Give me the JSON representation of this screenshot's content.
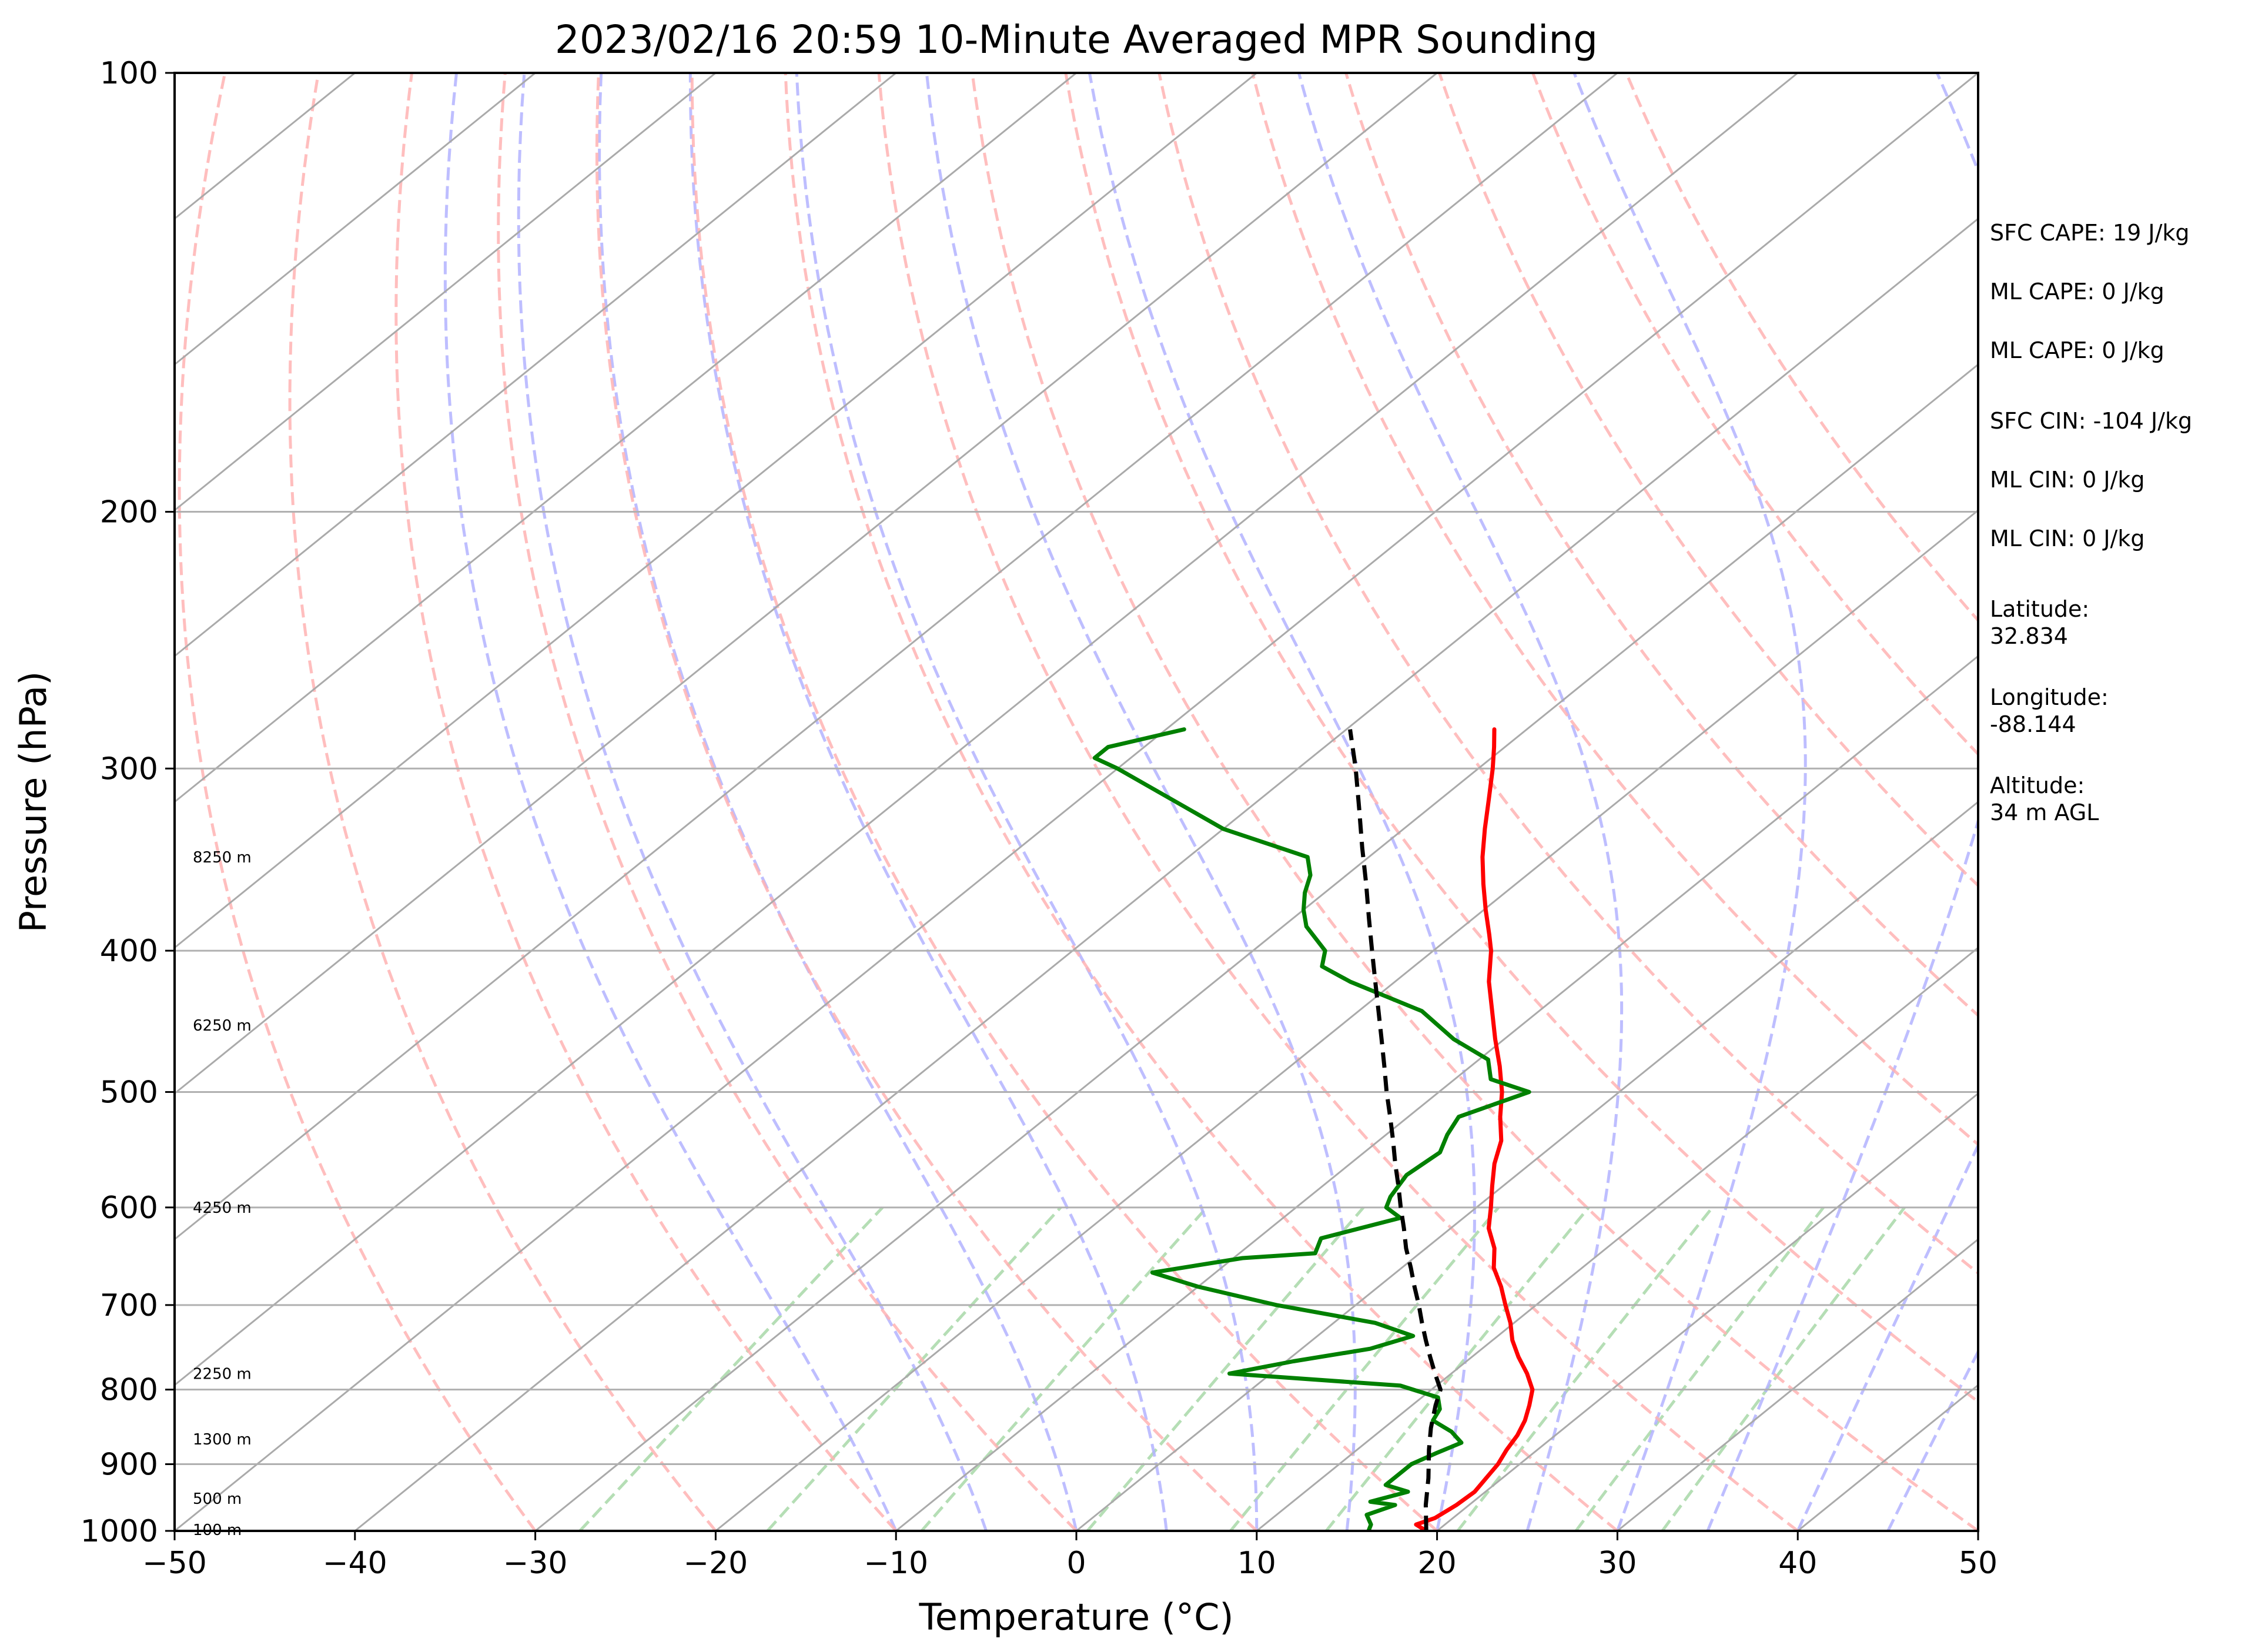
{
  "chart_data": {
    "type": "line",
    "title": "2023/02/16 20:59 10-Minute Averaged MPR Sounding",
    "xlabel": "Temperature (°C)",
    "ylabel": "Pressure (hPa)",
    "xlim": [
      -50,
      50
    ],
    "ylim": [
      1000,
      100
    ],
    "y_scale": "log",
    "skew_t": true,
    "grid": true,
    "x_ticks": [
      "−50",
      "−40",
      "−30",
      "−20",
      "−10",
      "0",
      "10",
      "20",
      "30",
      "40",
      "50"
    ],
    "y_ticks": [
      "100",
      "200",
      "300",
      "400",
      "500",
      "600",
      "700",
      "800",
      "900",
      "1000"
    ],
    "height_labels": [
      {
        "p": 998,
        "text": "100 m"
      },
      {
        "p": 950,
        "text": "500 m"
      },
      {
        "p": 865,
        "text": "1300 m"
      },
      {
        "p": 780,
        "text": "2250 m"
      },
      {
        "p": 600,
        "text": "4250 m"
      },
      {
        "p": 450,
        "text": "6250 m"
      },
      {
        "p": 345,
        "text": "8250 m"
      }
    ],
    "series": [
      {
        "key": "temperature",
        "color": "#ff0000",
        "style": "solid",
        "points": [
          [
            1000,
            19.4
          ],
          [
            990,
            18.4
          ],
          [
            980,
            19.0
          ],
          [
            960,
            19.3
          ],
          [
            940,
            19.4
          ],
          [
            920,
            19.1
          ],
          [
            900,
            18.8
          ],
          [
            880,
            18.3
          ],
          [
            860,
            17.9
          ],
          [
            840,
            17.3
          ],
          [
            820,
            16.5
          ],
          [
            800,
            15.6
          ],
          [
            780,
            14.2
          ],
          [
            760,
            12.6
          ],
          [
            740,
            11.1
          ],
          [
            720,
            9.8
          ],
          [
            700,
            8.3
          ],
          [
            680,
            6.8
          ],
          [
            660,
            5.1
          ],
          [
            640,
            3.8
          ],
          [
            620,
            2.1
          ],
          [
            600,
            0.8
          ],
          [
            580,
            -0.6
          ],
          [
            560,
            -2.0
          ],
          [
            540,
            -3.2
          ],
          [
            520,
            -4.9
          ],
          [
            500,
            -6.5
          ],
          [
            480,
            -8.4
          ],
          [
            460,
            -10.5
          ],
          [
            440,
            -12.6
          ],
          [
            420,
            -14.8
          ],
          [
            400,
            -16.8
          ],
          [
            390,
            -18.0
          ],
          [
            375,
            -19.9
          ],
          [
            360,
            -21.8
          ],
          [
            345,
            -23.7
          ],
          [
            330,
            -25.5
          ],
          [
            315,
            -27.3
          ],
          [
            300,
            -29.2
          ],
          [
            290,
            -30.6
          ],
          [
            282,
            -31.8
          ]
        ]
      },
      {
        "key": "dewpoint",
        "color": "#008000",
        "style": "solid",
        "points": [
          [
            1000,
            16.2
          ],
          [
            990,
            15.9
          ],
          [
            975,
            15.0
          ],
          [
            960,
            15.9
          ],
          [
            955,
            14.3
          ],
          [
            940,
            15.7
          ],
          [
            930,
            14.0
          ],
          [
            915,
            14.0
          ],
          [
            900,
            14.0
          ],
          [
            885,
            14.6
          ],
          [
            870,
            15.3
          ],
          [
            855,
            14.0
          ],
          [
            840,
            12.2
          ],
          [
            825,
            11.8
          ],
          [
            810,
            10.9
          ],
          [
            795,
            8.0
          ],
          [
            780,
            -2.3
          ],
          [
            765,
            0.4
          ],
          [
            750,
            3.8
          ],
          [
            735,
            5.3
          ],
          [
            720,
            2.3
          ],
          [
            700,
            -4.4
          ],
          [
            680,
            -10.0
          ],
          [
            665,
            -13.5
          ],
          [
            650,
            -9.5
          ],
          [
            645,
            -5.8
          ],
          [
            630,
            -6.5
          ],
          [
            610,
            -3.5
          ],
          [
            600,
            -5.0
          ],
          [
            590,
            -5.5
          ],
          [
            570,
            -6.1
          ],
          [
            550,
            -5.8
          ],
          [
            535,
            -6.6
          ],
          [
            520,
            -7.2
          ],
          [
            500,
            -5.0
          ],
          [
            490,
            -8.0
          ],
          [
            475,
            -9.5
          ],
          [
            460,
            -12.8
          ],
          [
            440,
            -16.5
          ],
          [
            420,
            -22.5
          ],
          [
            410,
            -25.1
          ],
          [
            400,
            -26.0
          ],
          [
            385,
            -28.7
          ],
          [
            375,
            -30.0
          ],
          [
            365,
            -31.1
          ],
          [
            355,
            -32.0
          ],
          [
            345,
            -33.4
          ],
          [
            330,
            -40.0
          ],
          [
            300,
            -50.0
          ],
          [
            295,
            -52.0
          ],
          [
            290,
            -52.0
          ],
          [
            282,
            -49.0
          ]
        ]
      },
      {
        "key": "parcel",
        "color": "#000000",
        "style": "dashed",
        "points": [
          [
            1000,
            19.4
          ],
          [
            960,
            17.6
          ],
          [
            920,
            15.9
          ],
          [
            880,
            14.0
          ],
          [
            850,
            12.6
          ],
          [
            820,
            11.3
          ],
          [
            800,
            10.5
          ],
          [
            780,
            9.1
          ],
          [
            760,
            7.7
          ],
          [
            740,
            6.3
          ],
          [
            720,
            4.9
          ],
          [
            700,
            3.5
          ],
          [
            680,
            2.0
          ],
          [
            660,
            0.5
          ],
          [
            640,
            -1.1
          ],
          [
            620,
            -2.6
          ],
          [
            600,
            -4.2
          ],
          [
            580,
            -5.8
          ],
          [
            560,
            -7.5
          ],
          [
            540,
            -9.2
          ],
          [
            520,
            -11.0
          ],
          [
            500,
            -12.9
          ],
          [
            480,
            -14.8
          ],
          [
            460,
            -16.8
          ],
          [
            440,
            -18.9
          ],
          [
            420,
            -21.1
          ],
          [
            400,
            -23.4
          ],
          [
            380,
            -25.8
          ],
          [
            360,
            -28.3
          ],
          [
            340,
            -31.0
          ],
          [
            320,
            -33.8
          ],
          [
            300,
            -36.8
          ],
          [
            282,
            -39.8
          ]
        ]
      }
    ],
    "annotations": [
      {
        "text": "SFC CAPE: 19 J/kg"
      },
      {
        "text": "ML CAPE: 0 J/kg"
      },
      {
        "text": "ML CAPE: 0 J/kg"
      },
      {
        "text": "SFC CIN: -104 J/kg"
      },
      {
        "text": "ML CIN: 0 J/kg"
      },
      {
        "text": "ML CIN: 0 J/kg"
      },
      {
        "text": "Latitude:\n32.834"
      },
      {
        "text": "Longitude:\n-88.144"
      },
      {
        "text": "Altitude:\n34 m AGL"
      }
    ],
    "colors": {
      "isotherm": "#aaaaaa",
      "isobar": "#b0b0b0",
      "dry_adiabat": "#ffb3b3",
      "moist_adiabat": "#b3b3ff",
      "mixing_ratio": "#a8d8a8"
    }
  }
}
